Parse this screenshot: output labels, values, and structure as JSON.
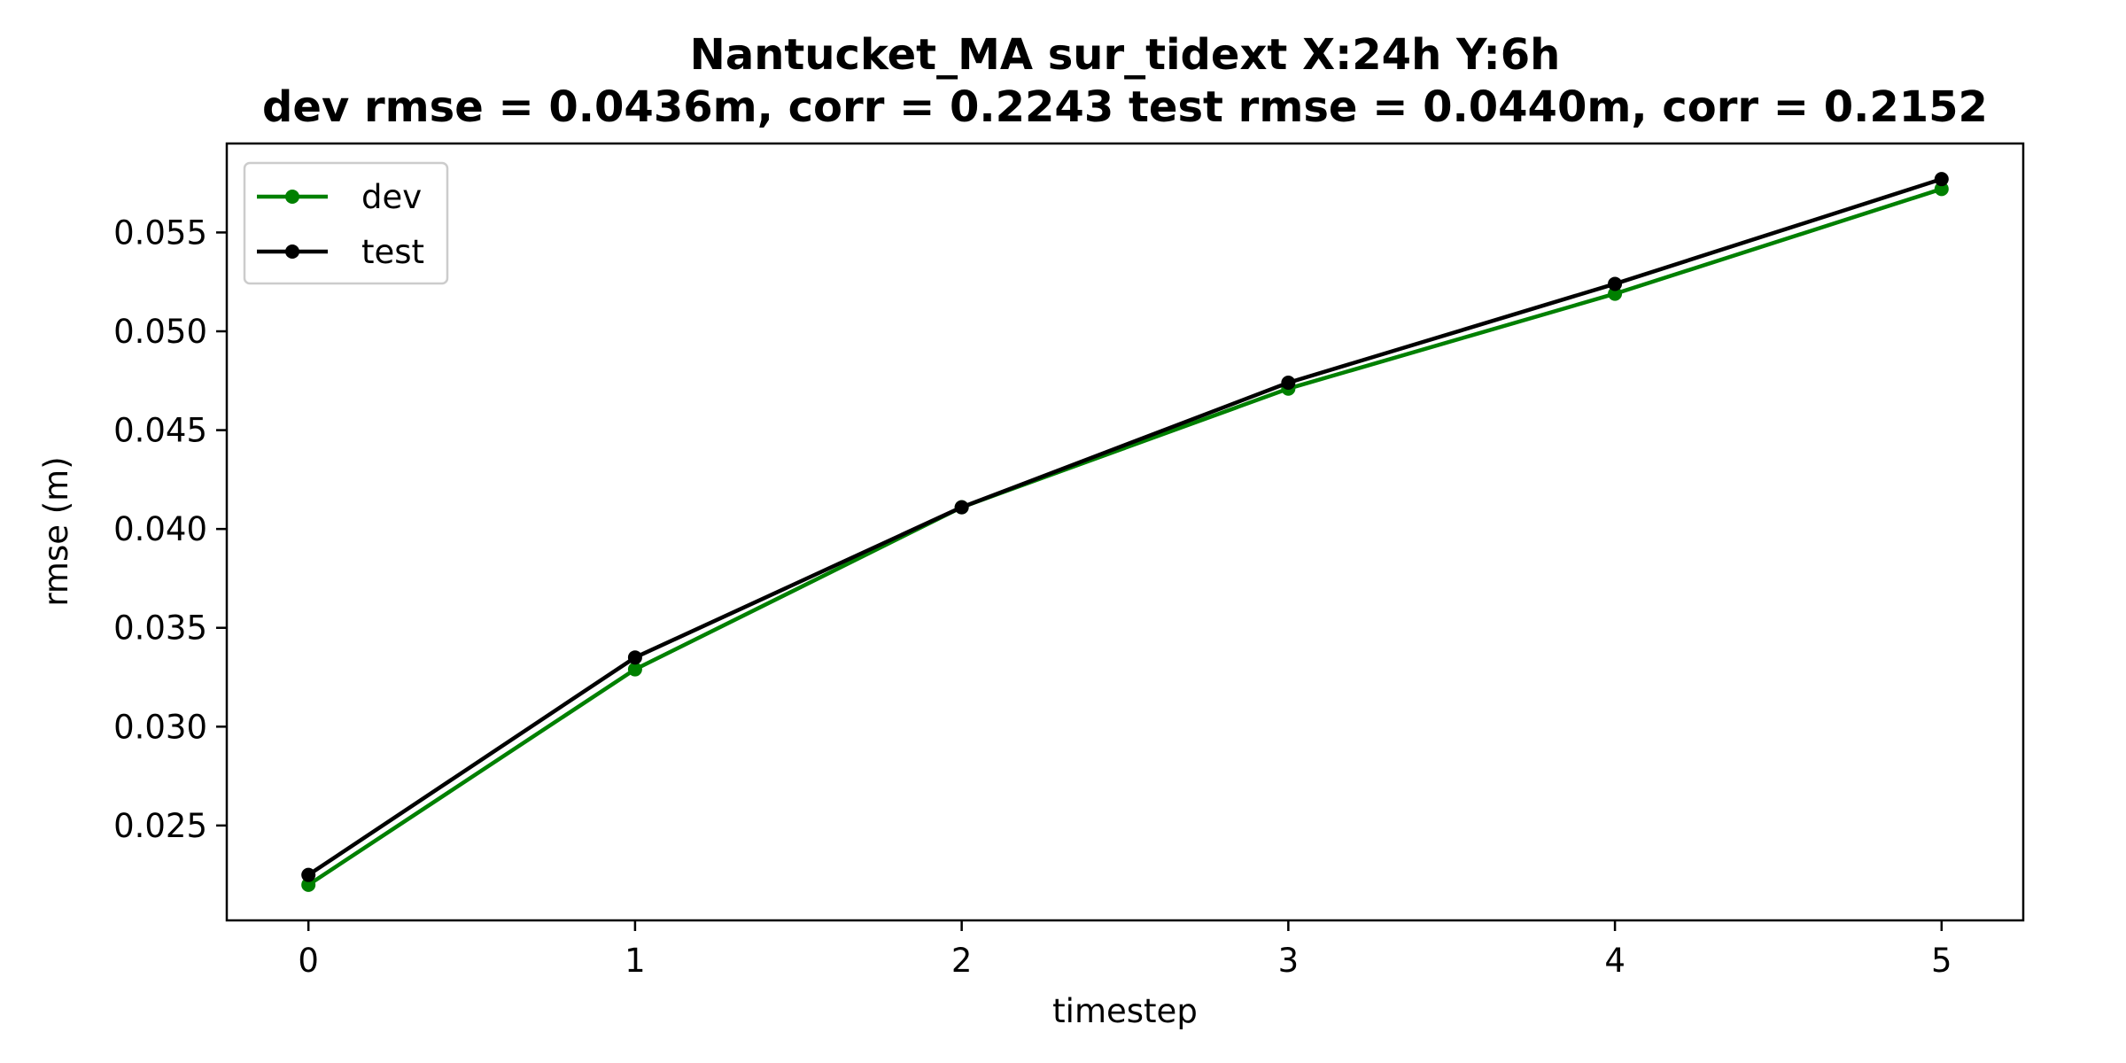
{
  "chart_data": {
    "type": "line",
    "title": "Nantucket_MA   sur_tidext   X:24h   Y:6h",
    "subtitle": "dev rmse = 0.0436m, corr = 0.2243   test rmse = 0.0440m, corr = 0.2152",
    "xlabel": "timestep",
    "ylabel": "rmse (m)",
    "x": [
      0,
      1,
      2,
      3,
      4,
      5
    ],
    "xticks": [
      "0",
      "1",
      "2",
      "3",
      "4",
      "5"
    ],
    "yticks": [
      "0.025",
      "0.030",
      "0.035",
      "0.040",
      "0.045",
      "0.050",
      "0.055"
    ],
    "ytick_values": [
      0.025,
      0.03,
      0.035,
      0.04,
      0.045,
      0.05,
      0.055
    ],
    "xlim": [
      -0.25,
      5.25
    ],
    "ylim": [
      0.0202,
      0.0595
    ],
    "grid": false,
    "legend_position": "top-left",
    "series": [
      {
        "name": "dev",
        "color": "#008000",
        "marker": "circle",
        "values": [
          0.022,
          0.0329,
          0.0411,
          0.0471,
          0.0519,
          0.0572
        ]
      },
      {
        "name": "test",
        "color": "#000000",
        "marker": "circle",
        "values": [
          0.0225,
          0.0335,
          0.0411,
          0.0474,
          0.0524,
          0.0577
        ]
      }
    ]
  }
}
